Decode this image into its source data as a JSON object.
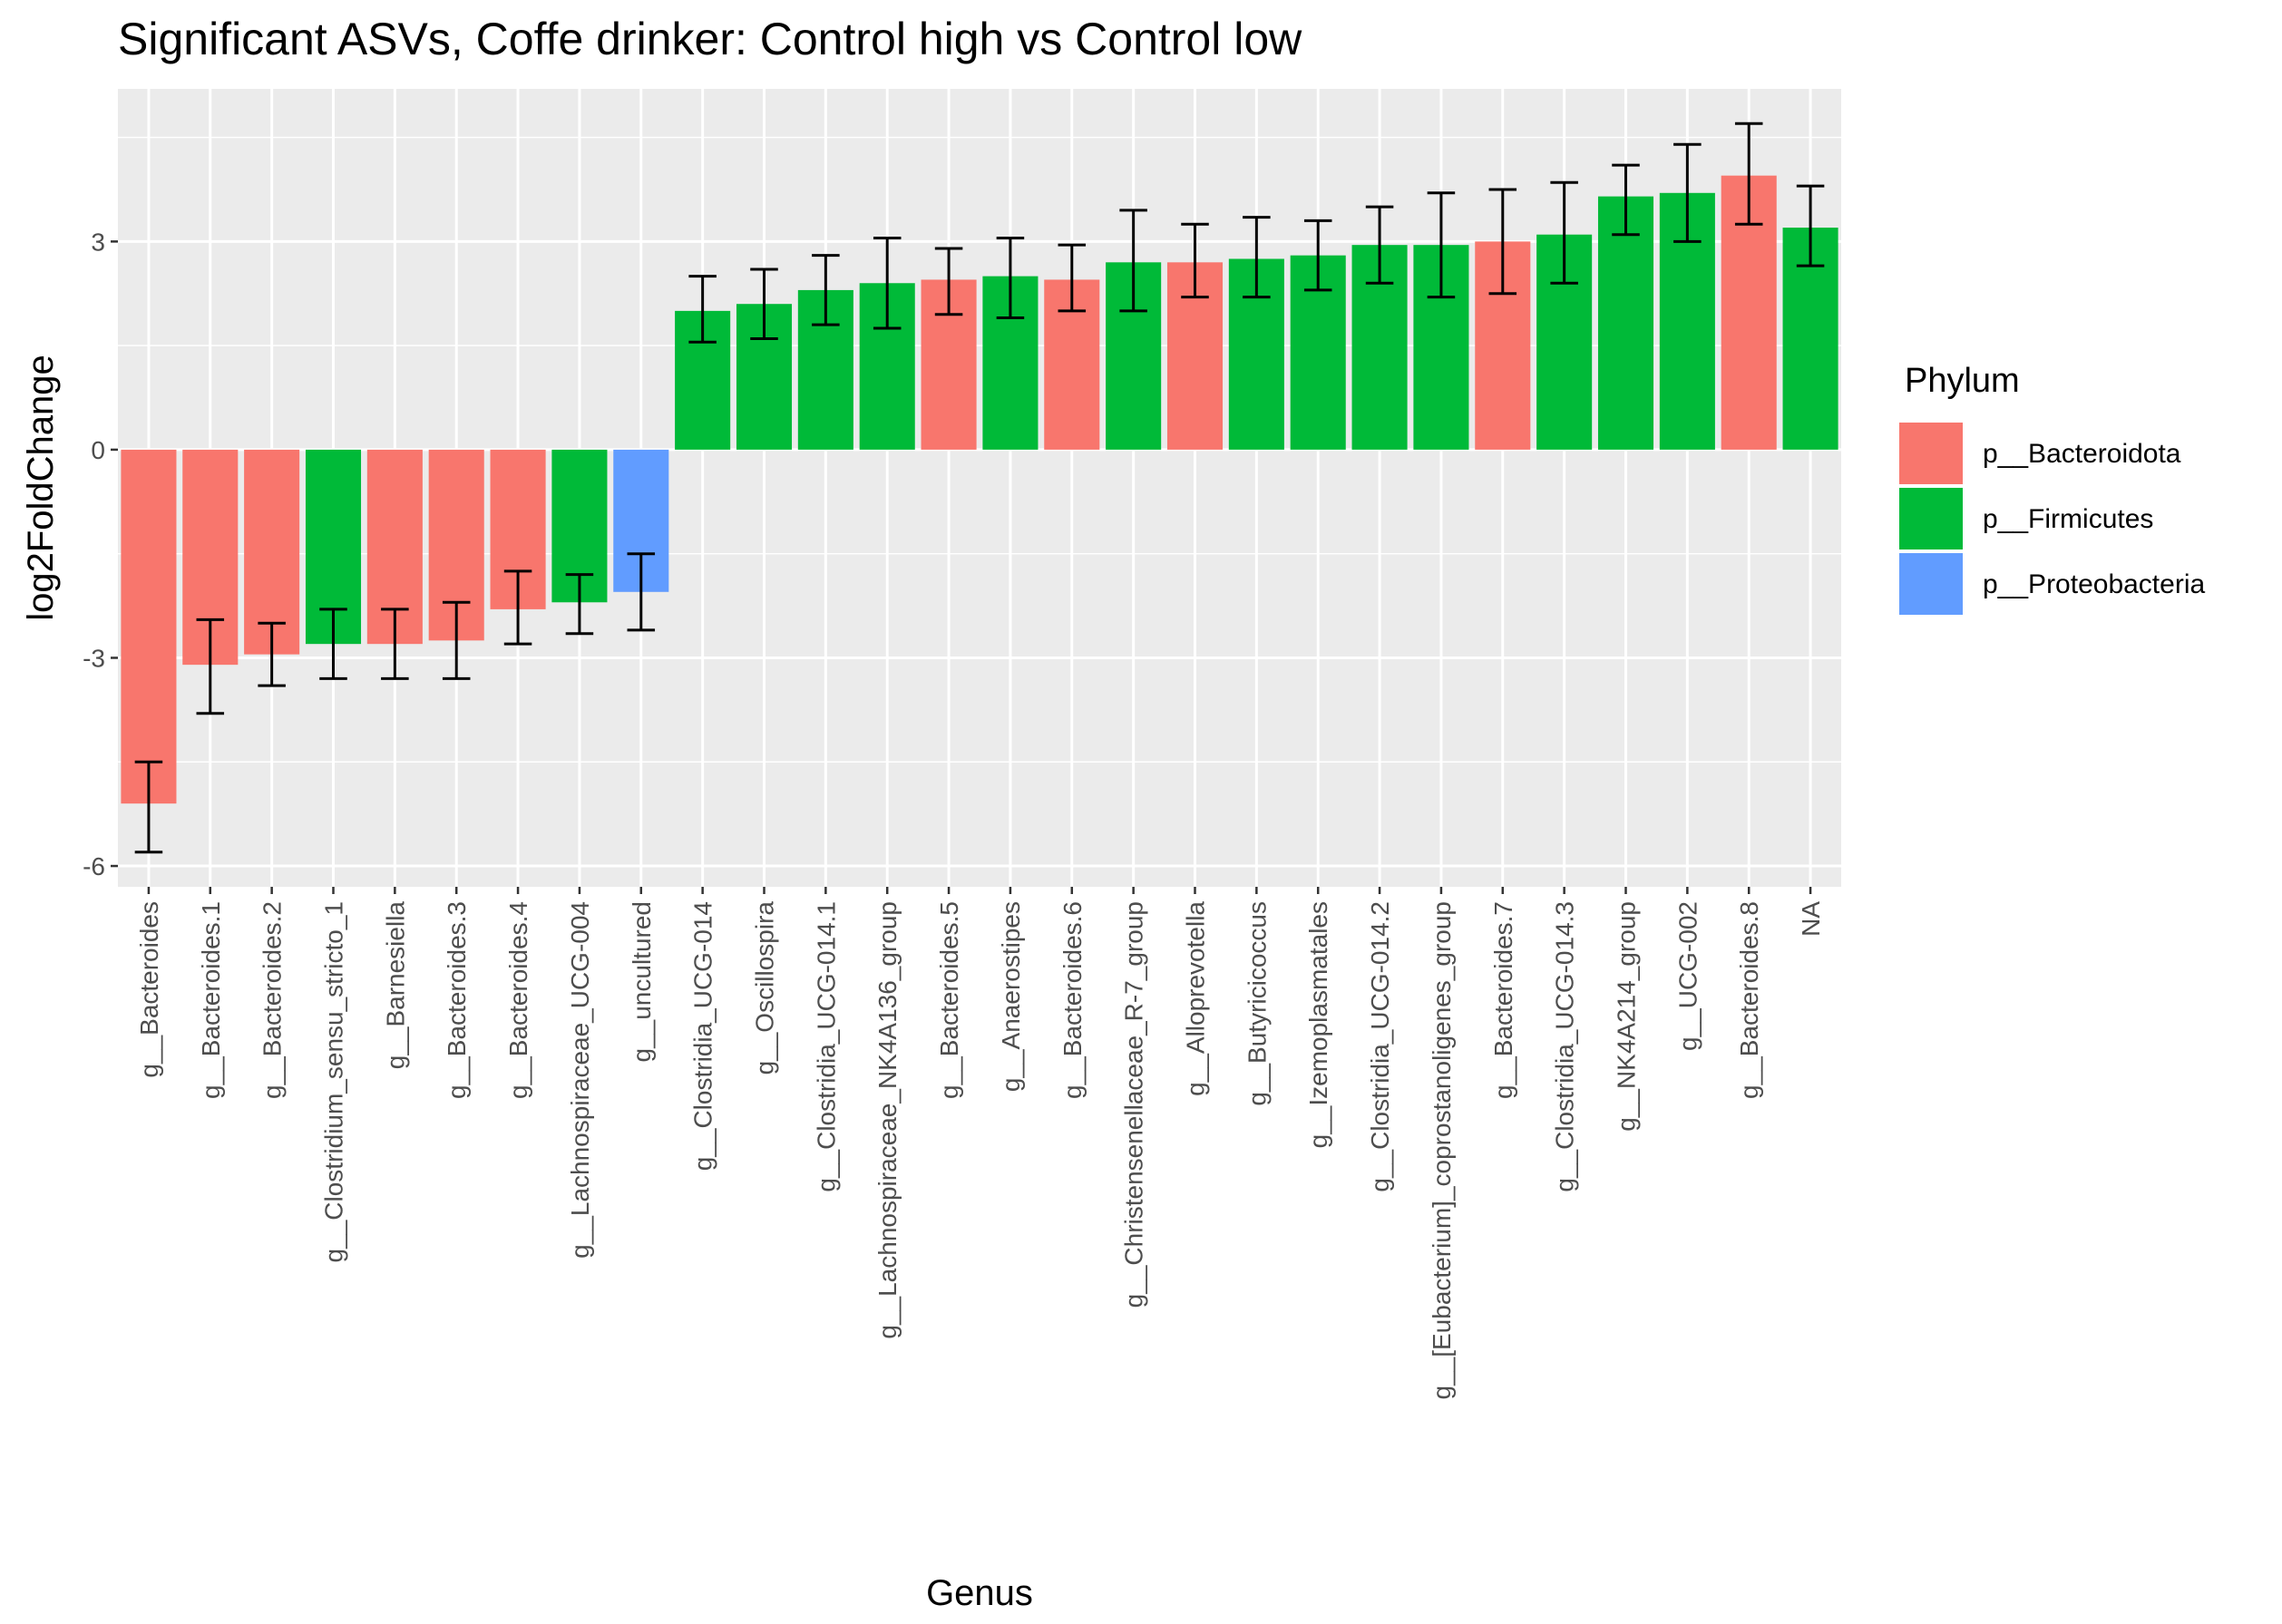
{
  "chart_data": {
    "type": "bar",
    "title": "Significant ASVs, Coffe drinker: Control high vs Control low",
    "xlabel": "Genus",
    "ylabel": "log2FoldChange",
    "ylim": [
      -6.3,
      5.2
    ],
    "yticks": [
      -6,
      -3,
      0,
      3
    ],
    "ytick_labels": [
      "-6",
      "-3",
      "0",
      "3"
    ],
    "grid": true,
    "legend": {
      "title": "Phylum",
      "position": "right",
      "entries": [
        {
          "name": "p__Bacteroidota",
          "color": "#F8766D"
        },
        {
          "name": "p__Firmicutes",
          "color": "#00BA38"
        },
        {
          "name": "p__Proteobacteria",
          "color": "#619CFF"
        }
      ]
    },
    "categories": [
      "g__Bacteroides",
      "g__Bacteroides.1",
      "g__Bacteroides.2",
      "g__Clostridium_sensu_stricto_1",
      "g__Barnesiella",
      "g__Bacteroides.3",
      "g__Bacteroides.4",
      "g__Lachnospiraceae_UCG-004",
      "g__uncultured",
      "g__Clostridia_UCG-014",
      "g__Oscillospira",
      "g__Clostridia_UCG-014.1",
      "g__Lachnospiraceae_NK4A136_group",
      "g__Bacteroides.5",
      "g__Anaerostipes",
      "g__Bacteroides.6",
      "g__Christensenellaceae_R-7_group",
      "g__Alloprevotella",
      "g__Butyricicoccus",
      "g__Izemoplasmatales",
      "g__Clostridia_UCG-014.2",
      "g__[Eubacterium]_coprostanoligenes_group",
      "g__Bacteroides.7",
      "g__Clostridia_UCG-014.3",
      "g__NK4A214_group",
      "g__UCG-002",
      "g__Bacteroides.8",
      "NA"
    ],
    "values": [
      -5.1,
      -3.1,
      -2.95,
      -2.8,
      -2.8,
      -2.75,
      -2.3,
      -2.2,
      -2.05,
      2.0,
      2.1,
      2.3,
      2.4,
      2.45,
      2.5,
      2.45,
      2.7,
      2.7,
      2.75,
      2.8,
      2.95,
      2.95,
      3.0,
      3.1,
      3.65,
      3.7,
      3.95,
      3.2
    ],
    "error_low": [
      -5.8,
      -3.8,
      -3.4,
      -3.3,
      -3.3,
      -3.3,
      -2.8,
      -2.65,
      -2.6,
      1.55,
      1.6,
      1.8,
      1.75,
      1.95,
      1.9,
      2.0,
      2.0,
      2.2,
      2.2,
      2.3,
      2.4,
      2.2,
      2.25,
      2.4,
      3.1,
      3.0,
      3.25,
      2.65
    ],
    "error_high": [
      -4.5,
      -2.45,
      -2.5,
      -2.3,
      -2.3,
      -2.2,
      -1.75,
      -1.8,
      -1.5,
      2.5,
      2.6,
      2.8,
      3.05,
      2.9,
      3.05,
      2.95,
      3.45,
      3.25,
      3.35,
      3.3,
      3.5,
      3.7,
      3.75,
      3.85,
      4.1,
      4.4,
      4.7,
      3.8
    ],
    "phylum": [
      "p__Bacteroidota",
      "p__Bacteroidota",
      "p__Bacteroidota",
      "p__Firmicutes",
      "p__Bacteroidota",
      "p__Bacteroidota",
      "p__Bacteroidota",
      "p__Firmicutes",
      "p__Proteobacteria",
      "p__Firmicutes",
      "p__Firmicutes",
      "p__Firmicutes",
      "p__Firmicutes",
      "p__Bacteroidota",
      "p__Firmicutes",
      "p__Bacteroidota",
      "p__Firmicutes",
      "p__Bacteroidota",
      "p__Firmicutes",
      "p__Firmicutes",
      "p__Firmicutes",
      "p__Firmicutes",
      "p__Bacteroidota",
      "p__Firmicutes",
      "p__Firmicutes",
      "p__Firmicutes",
      "p__Bacteroidota",
      "p__Firmicutes"
    ],
    "colors": {
      "panel_background": "#EBEBEB",
      "grid": "#FFFFFF",
      "error_bar": "#000000"
    }
  }
}
